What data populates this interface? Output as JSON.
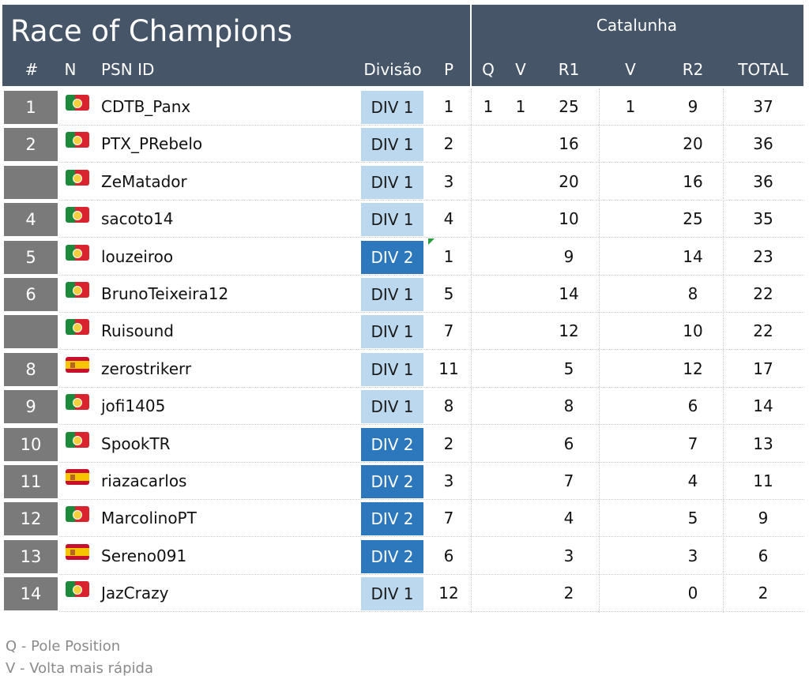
{
  "title": "Race of Champions",
  "event": "Catalunha",
  "headers": {
    "pos": "#",
    "nat": "N",
    "psn": "PSN ID",
    "div": "Divisão",
    "p": "P",
    "q": "Q",
    "v1": "V",
    "r1": "R1",
    "v2": "V",
    "r2": "R2",
    "total": "TOTAL"
  },
  "rows": [
    {
      "pos": "1",
      "flag": "pt",
      "name": "CDTB_Panx",
      "div": "DIV 1",
      "p": "1",
      "q": "1",
      "v1": "1",
      "r1": "25",
      "v2": "1",
      "r2": "9",
      "total": "37"
    },
    {
      "pos": "2",
      "flag": "pt",
      "name": "PTX_PRebelo",
      "div": "DIV 1",
      "p": "2",
      "q": "",
      "v1": "",
      "r1": "16",
      "v2": "",
      "r2": "20",
      "total": "36"
    },
    {
      "pos": "",
      "flag": "pt",
      "name": "ZeMatador",
      "div": "DIV 1",
      "p": "3",
      "q": "",
      "v1": "",
      "r1": "20",
      "v2": "",
      "r2": "16",
      "total": "36"
    },
    {
      "pos": "4",
      "flag": "pt",
      "name": "sacoto14",
      "div": "DIV 1",
      "p": "4",
      "q": "",
      "v1": "",
      "r1": "10",
      "v2": "",
      "r2": "25",
      "total": "35"
    },
    {
      "pos": "5",
      "flag": "pt",
      "name": "louzeiroo",
      "div": "DIV 2",
      "p": "1",
      "q": "",
      "v1": "",
      "r1": "9",
      "v2": "",
      "r2": "14",
      "total": "23"
    },
    {
      "pos": "6",
      "flag": "pt",
      "name": "BrunoTeixeira12",
      "div": "DIV 1",
      "p": "5",
      "q": "",
      "v1": "",
      "r1": "14",
      "v2": "",
      "r2": "8",
      "total": "22"
    },
    {
      "pos": "",
      "flag": "pt",
      "name": "Ruisound",
      "div": "DIV 1",
      "p": "7",
      "q": "",
      "v1": "",
      "r1": "12",
      "v2": "",
      "r2": "10",
      "total": "22"
    },
    {
      "pos": "8",
      "flag": "es",
      "name": "zerostrikerr",
      "div": "DIV 1",
      "p": "11",
      "q": "",
      "v1": "",
      "r1": "5",
      "v2": "",
      "r2": "12",
      "total": "17"
    },
    {
      "pos": "9",
      "flag": "pt",
      "name": "jofi1405",
      "div": "DIV 1",
      "p": "8",
      "q": "",
      "v1": "",
      "r1": "8",
      "v2": "",
      "r2": "6",
      "total": "14"
    },
    {
      "pos": "10",
      "flag": "pt",
      "name": "SpookTR",
      "div": "DIV 2",
      "p": "2",
      "q": "",
      "v1": "",
      "r1": "6",
      "v2": "",
      "r2": "7",
      "total": "13"
    },
    {
      "pos": "11",
      "flag": "es",
      "name": "riazacarlos",
      "div": "DIV 2",
      "p": "3",
      "q": "",
      "v1": "",
      "r1": "7",
      "v2": "",
      "r2": "4",
      "total": "11"
    },
    {
      "pos": "12",
      "flag": "pt",
      "name": "MarcolinoPT",
      "div": "DIV 2",
      "p": "7",
      "q": "",
      "v1": "",
      "r1": "4",
      "v2": "",
      "r2": "5",
      "total": "9"
    },
    {
      "pos": "13",
      "flag": "es",
      "name": "Sereno091",
      "div": "DIV 2",
      "p": "6",
      "q": "",
      "v1": "",
      "r1": "3",
      "v2": "",
      "r2": "3",
      "total": "6"
    },
    {
      "pos": "14",
      "flag": "pt",
      "name": "JazCrazy",
      "div": "DIV 1",
      "p": "12",
      "q": "",
      "v1": "",
      "r1": "2",
      "v2": "",
      "r2": "0",
      "total": "2"
    }
  ],
  "legend": [
    "Q - Pole Position",
    "V - Volta mais rápida"
  ]
}
